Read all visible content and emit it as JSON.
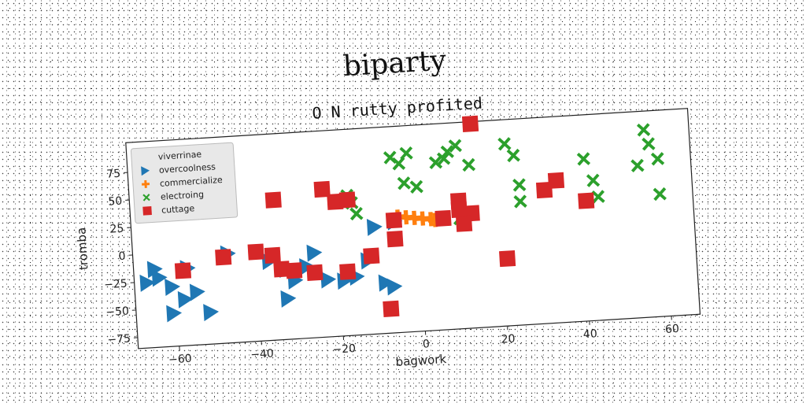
{
  "chart_data": {
    "type": "scatter",
    "title": "biparty",
    "subtitle": "O N rutty profited",
    "xlabel": "bagwork",
    "ylabel": "tromba",
    "xlim": [
      -70,
      67
    ],
    "ylim": [
      -85,
      102
    ],
    "xticks": [
      -60,
      -40,
      -20,
      0,
      20,
      40,
      60
    ],
    "yticks": [
      -75,
      -50,
      -25,
      0,
      25,
      50,
      75
    ],
    "tick_labels_x": [
      "−60",
      "−40",
      "−20",
      "0",
      "20",
      "40",
      "60"
    ],
    "tick_labels_y": [
      "−75",
      "−50",
      "−25",
      "0",
      "25",
      "50",
      "75"
    ],
    "grid": false,
    "legend_position": "top-left",
    "series": [
      {
        "name": "viverrinae",
        "marker": "none",
        "color": "#9467bd",
        "points": []
      },
      {
        "name": "overcoolness",
        "marker": "triangle-right",
        "color": "#1f77b4",
        "points": [
          [
            -65,
            -14
          ],
          [
            -67,
            -26
          ],
          [
            -64,
            -22
          ],
          [
            -61,
            -31
          ],
          [
            -58,
            -43
          ],
          [
            -55,
            -37
          ],
          [
            -61,
            -55
          ],
          [
            -52,
            -56
          ],
          [
            -57,
            -15
          ],
          [
            -47,
            -4
          ],
          [
            -37,
            -13
          ],
          [
            -33,
            -21
          ],
          [
            -31,
            -32
          ],
          [
            -28,
            -20
          ],
          [
            -23,
            -33
          ],
          [
            -19,
            -35
          ],
          [
            -26,
            -8
          ],
          [
            -16,
            -32
          ],
          [
            -13,
            -18
          ],
          [
            -11,
            12
          ],
          [
            -6,
            16
          ],
          [
            -9,
            -39
          ],
          [
            -7,
            -43
          ],
          [
            -33,
            -48
          ]
        ]
      },
      {
        "name": "commercialize",
        "marker": "plus",
        "color": "#ff7f0e",
        "points": [
          [
            -5,
            20
          ],
          [
            -3,
            19
          ],
          [
            -1,
            18
          ],
          [
            1,
            17
          ],
          [
            3,
            16
          ],
          [
            4,
            15
          ]
        ]
      },
      {
        "name": "electroing",
        "marker": "x",
        "color": "#2ca02c",
        "points": [
          [
            -17,
            42
          ],
          [
            -16,
            35
          ],
          [
            -15,
            25
          ],
          [
            -6,
            74
          ],
          [
            -4,
            68
          ],
          [
            -2,
            77
          ],
          [
            -3,
            50
          ],
          [
            0,
            46
          ],
          [
            5,
            67
          ],
          [
            7,
            70
          ],
          [
            8,
            76
          ],
          [
            10,
            81
          ],
          [
            13,
            63
          ],
          [
            22,
            80
          ],
          [
            24,
            69
          ],
          [
            25,
            42
          ],
          [
            25,
            27
          ],
          [
            41,
            62
          ],
          [
            43,
            42
          ],
          [
            44,
            27
          ],
          [
            54,
            53
          ],
          [
            56,
            85
          ],
          [
            57,
            72
          ],
          [
            59,
            58
          ],
          [
            59,
            26
          ],
          [
            10,
            15
          ]
        ]
      },
      {
        "name": "cuttage",
        "marker": "square",
        "color": "#d62728",
        "points": [
          [
            14,
            100
          ],
          [
            -35,
            42
          ],
          [
            -23,
            49
          ],
          [
            -20,
            37
          ],
          [
            -17,
            38
          ],
          [
            -58,
            -17
          ],
          [
            -48,
            -7
          ],
          [
            -40,
            -4
          ],
          [
            -36,
            -8
          ],
          [
            -34,
            -21
          ],
          [
            -31,
            -23
          ],
          [
            -26,
            -26
          ],
          [
            -18,
            -27
          ],
          [
            -6,
            17
          ],
          [
            -6,
            0
          ],
          [
            -12,
            -14
          ],
          [
            -8,
            -63
          ],
          [
            6,
            16
          ],
          [
            10,
            31
          ],
          [
            10,
            23
          ],
          [
            13,
            19
          ],
          [
            11,
            10
          ],
          [
            21,
            -24
          ],
          [
            31,
            36
          ],
          [
            34,
            44
          ],
          [
            41,
            24
          ]
        ]
      }
    ]
  }
}
